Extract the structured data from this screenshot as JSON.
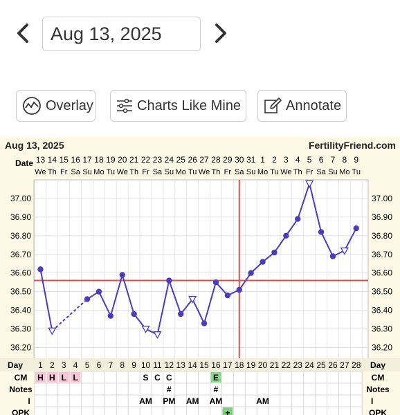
{
  "header": {
    "prev_icon": "chevron-left-icon",
    "next_icon": "chevron-right-icon",
    "date_value": "Aug 13, 2025"
  },
  "actions": [
    {
      "label": "Overlay",
      "icon": "overlay-icon"
    },
    {
      "label": "Charts Like Mine",
      "icon": "sliders-icon"
    },
    {
      "label": "Annotate",
      "icon": "edit-icon"
    }
  ],
  "chart": {
    "date_label": "Aug 13, 2025",
    "brand": "FertilityFriend.com",
    "date_row_label": "Date",
    "day_row_label": "Day",
    "cm_label": "CM",
    "notes_label": "Notes",
    "i_label": "I",
    "opk_label": "OPK",
    "dates": [
      "13",
      "14",
      "15",
      "16",
      "17",
      "18",
      "19",
      "20",
      "21",
      "22",
      "23",
      "24",
      "25",
      "26",
      "27",
      "28",
      "29",
      "30",
      "31",
      "1",
      "2",
      "3",
      "4",
      "5",
      "6",
      "7",
      "8",
      "9"
    ],
    "weekdays": [
      "We",
      "Th",
      "Fr",
      "Sa",
      "Su",
      "Mo",
      "Tu",
      "We",
      "Th",
      "Fr",
      "Sa",
      "Su",
      "Mo",
      "Tu",
      "We",
      "Th",
      "Fr",
      "Sa",
      "Su",
      "Mo",
      "Tu",
      "We",
      "Th",
      "Fr",
      "Sa",
      "Su",
      "Mo",
      "Tu"
    ],
    "days": [
      "1",
      "2",
      "3",
      "4",
      "5",
      "6",
      "7",
      "8",
      "9",
      "10",
      "11",
      "12",
      "13",
      "14",
      "15",
      "16",
      "17",
      "18",
      "19",
      "20",
      "21",
      "22",
      "23",
      "24",
      "25",
      "26",
      "27",
      "28"
    ],
    "cm": {
      "1": "H",
      "2": "H",
      "3": "L",
      "4": "L",
      "10": "S",
      "11": "C",
      "12": "C",
      "16": "E"
    },
    "notes": {
      "12": "#",
      "16": "#"
    },
    "intercourse": {
      "10": "AM",
      "12": "PM",
      "14": "AM",
      "16": "AM",
      "20": "AM"
    },
    "opk": {
      "17": "+"
    },
    "colors": {
      "line": "#4b3bbf",
      "coverline": "#d9534f",
      "ovulation_line": "#d9534f",
      "menses_cell": "#f4c6d6",
      "egg_white_cell": "#8fd48f",
      "opk_positive_cell": "#7ccf7c",
      "chart_bg": "#fdf9e6"
    }
  },
  "chart_data": {
    "type": "line",
    "title": "",
    "xlabel": "Day",
    "ylabel": "",
    "categories": [
      "1",
      "2",
      "3",
      "4",
      "5",
      "6",
      "7",
      "8",
      "9",
      "10",
      "11",
      "12",
      "13",
      "14",
      "15",
      "16",
      "17",
      "18",
      "19",
      "20",
      "21",
      "22",
      "23",
      "24",
      "25",
      "26",
      "27",
      "28"
    ],
    "series": [
      {
        "values": [
          36.62,
          36.29,
          null,
          null,
          36.46,
          36.5,
          36.37,
          36.59,
          36.38,
          36.3,
          36.27,
          36.56,
          36.38,
          36.46,
          36.33,
          36.55,
          36.48,
          36.51,
          36.6,
          36.66,
          36.71,
          36.8,
          36.89,
          37.08,
          36.82,
          36.69,
          36.72,
          36.84
        ],
        "discarded_days": [
          "2",
          "10",
          "11",
          "14",
          "24",
          "27"
        ],
        "dashed_segment": [
          "2",
          "5"
        ]
      }
    ],
    "coverline": 36.56,
    "ovulation_day": 17.5,
    "ylim": [
      36.15,
      37.1
    ],
    "yticks": [
      "36.20",
      "36.30",
      "36.40",
      "36.50",
      "36.60",
      "36.70",
      "36.80",
      "36.90",
      "37.00"
    ],
    "grid": true
  }
}
